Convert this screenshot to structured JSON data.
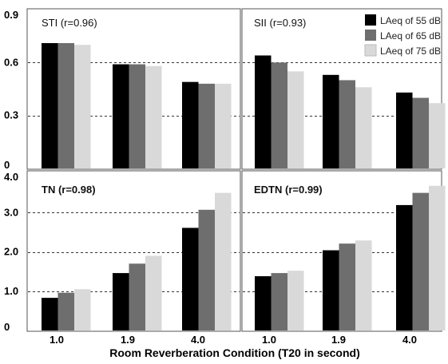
{
  "figure": {
    "xlabel": "Room Reverberation Condition (T20 in second)"
  },
  "legend": {
    "items": [
      {
        "label": "LAeq of 55 dB",
        "color": "#000000"
      },
      {
        "label": "LAeq of 65 dB",
        "color": "#6e6e6e"
      },
      {
        "label": "LAeq of 75 dB",
        "color": "#d9d9d9"
      }
    ]
  },
  "chart_data": [
    {
      "type": "bar",
      "title": "STI (r=0.96)",
      "categories": [
        "1.0",
        "1.9",
        "4.0"
      ],
      "ylim": [
        0,
        0.9
      ],
      "yticks": [
        "0",
        "0.3",
        "0.6",
        "0.9"
      ],
      "ytick_values": [
        0,
        0.3,
        0.6,
        0.9
      ],
      "grid_values": [
        0.3,
        0.6
      ],
      "series": [
        {
          "name": "LAeq of 55 dB",
          "values": [
            0.71,
            0.59,
            0.49
          ]
        },
        {
          "name": "LAeq of 65 dB",
          "values": [
            0.71,
            0.59,
            0.48
          ]
        },
        {
          "name": "LAeq of 75 dB",
          "values": [
            0.7,
            0.58,
            0.48
          ]
        }
      ]
    },
    {
      "type": "bar",
      "title": "SII (r=0.93)",
      "categories": [
        "1.0",
        "1.9",
        "4.0"
      ],
      "ylim": [
        0,
        0.9
      ],
      "grid_values": [
        0.3,
        0.6
      ],
      "legend_position": "top-right",
      "series": [
        {
          "name": "LAeq of 55 dB",
          "values": [
            0.64,
            0.53,
            0.43
          ]
        },
        {
          "name": "LAeq of 65 dB",
          "values": [
            0.6,
            0.5,
            0.4
          ]
        },
        {
          "name": "LAeq of 75 dB",
          "values": [
            0.55,
            0.46,
            0.37
          ]
        }
      ]
    },
    {
      "type": "bar",
      "title": "TN (r=0.98)",
      "categories": [
        "1.0",
        "1.9",
        "4.0"
      ],
      "ylim": [
        0,
        4.0
      ],
      "yticks": [
        "0",
        "1.0",
        "2.0",
        "3.0",
        "4.0"
      ],
      "ytick_values": [
        0,
        1.0,
        2.0,
        3.0,
        4.0
      ],
      "grid_values": [
        1.0,
        2.0,
        3.0
      ],
      "series": [
        {
          "name": "LAeq of 55 dB",
          "values": [
            0.83,
            1.46,
            2.61
          ]
        },
        {
          "name": "LAeq of 65 dB",
          "values": [
            0.96,
            1.7,
            3.07
          ]
        },
        {
          "name": "LAeq of 75 dB",
          "values": [
            1.05,
            1.9,
            3.5
          ]
        }
      ]
    },
    {
      "type": "bar",
      "title": "EDTN (r=0.99)",
      "categories": [
        "1.0",
        "1.9",
        "4.0"
      ],
      "ylim": [
        0,
        4.0
      ],
      "grid_values": [
        1.0,
        2.0,
        3.0
      ],
      "series": [
        {
          "name": "LAeq of 55 dB",
          "values": [
            1.38,
            2.04,
            3.19
          ]
        },
        {
          "name": "LAeq of 65 dB",
          "values": [
            1.46,
            2.21,
            3.5
          ]
        },
        {
          "name": "LAeq of 75 dB",
          "values": [
            1.52,
            2.29,
            3.68
          ]
        }
      ]
    }
  ]
}
